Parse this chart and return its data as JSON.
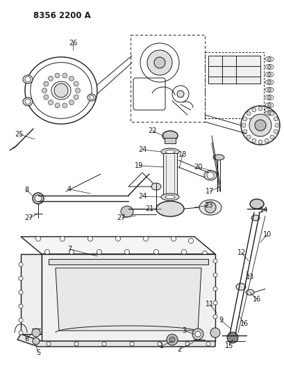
{
  "title": "8356 2200 A",
  "bg_color": "#ffffff",
  "line_color": "#1a1a1a",
  "title_fontsize": 8.5,
  "label_fontsize": 7,
  "fig_width": 4.1,
  "fig_height": 5.33,
  "dpi": 100
}
